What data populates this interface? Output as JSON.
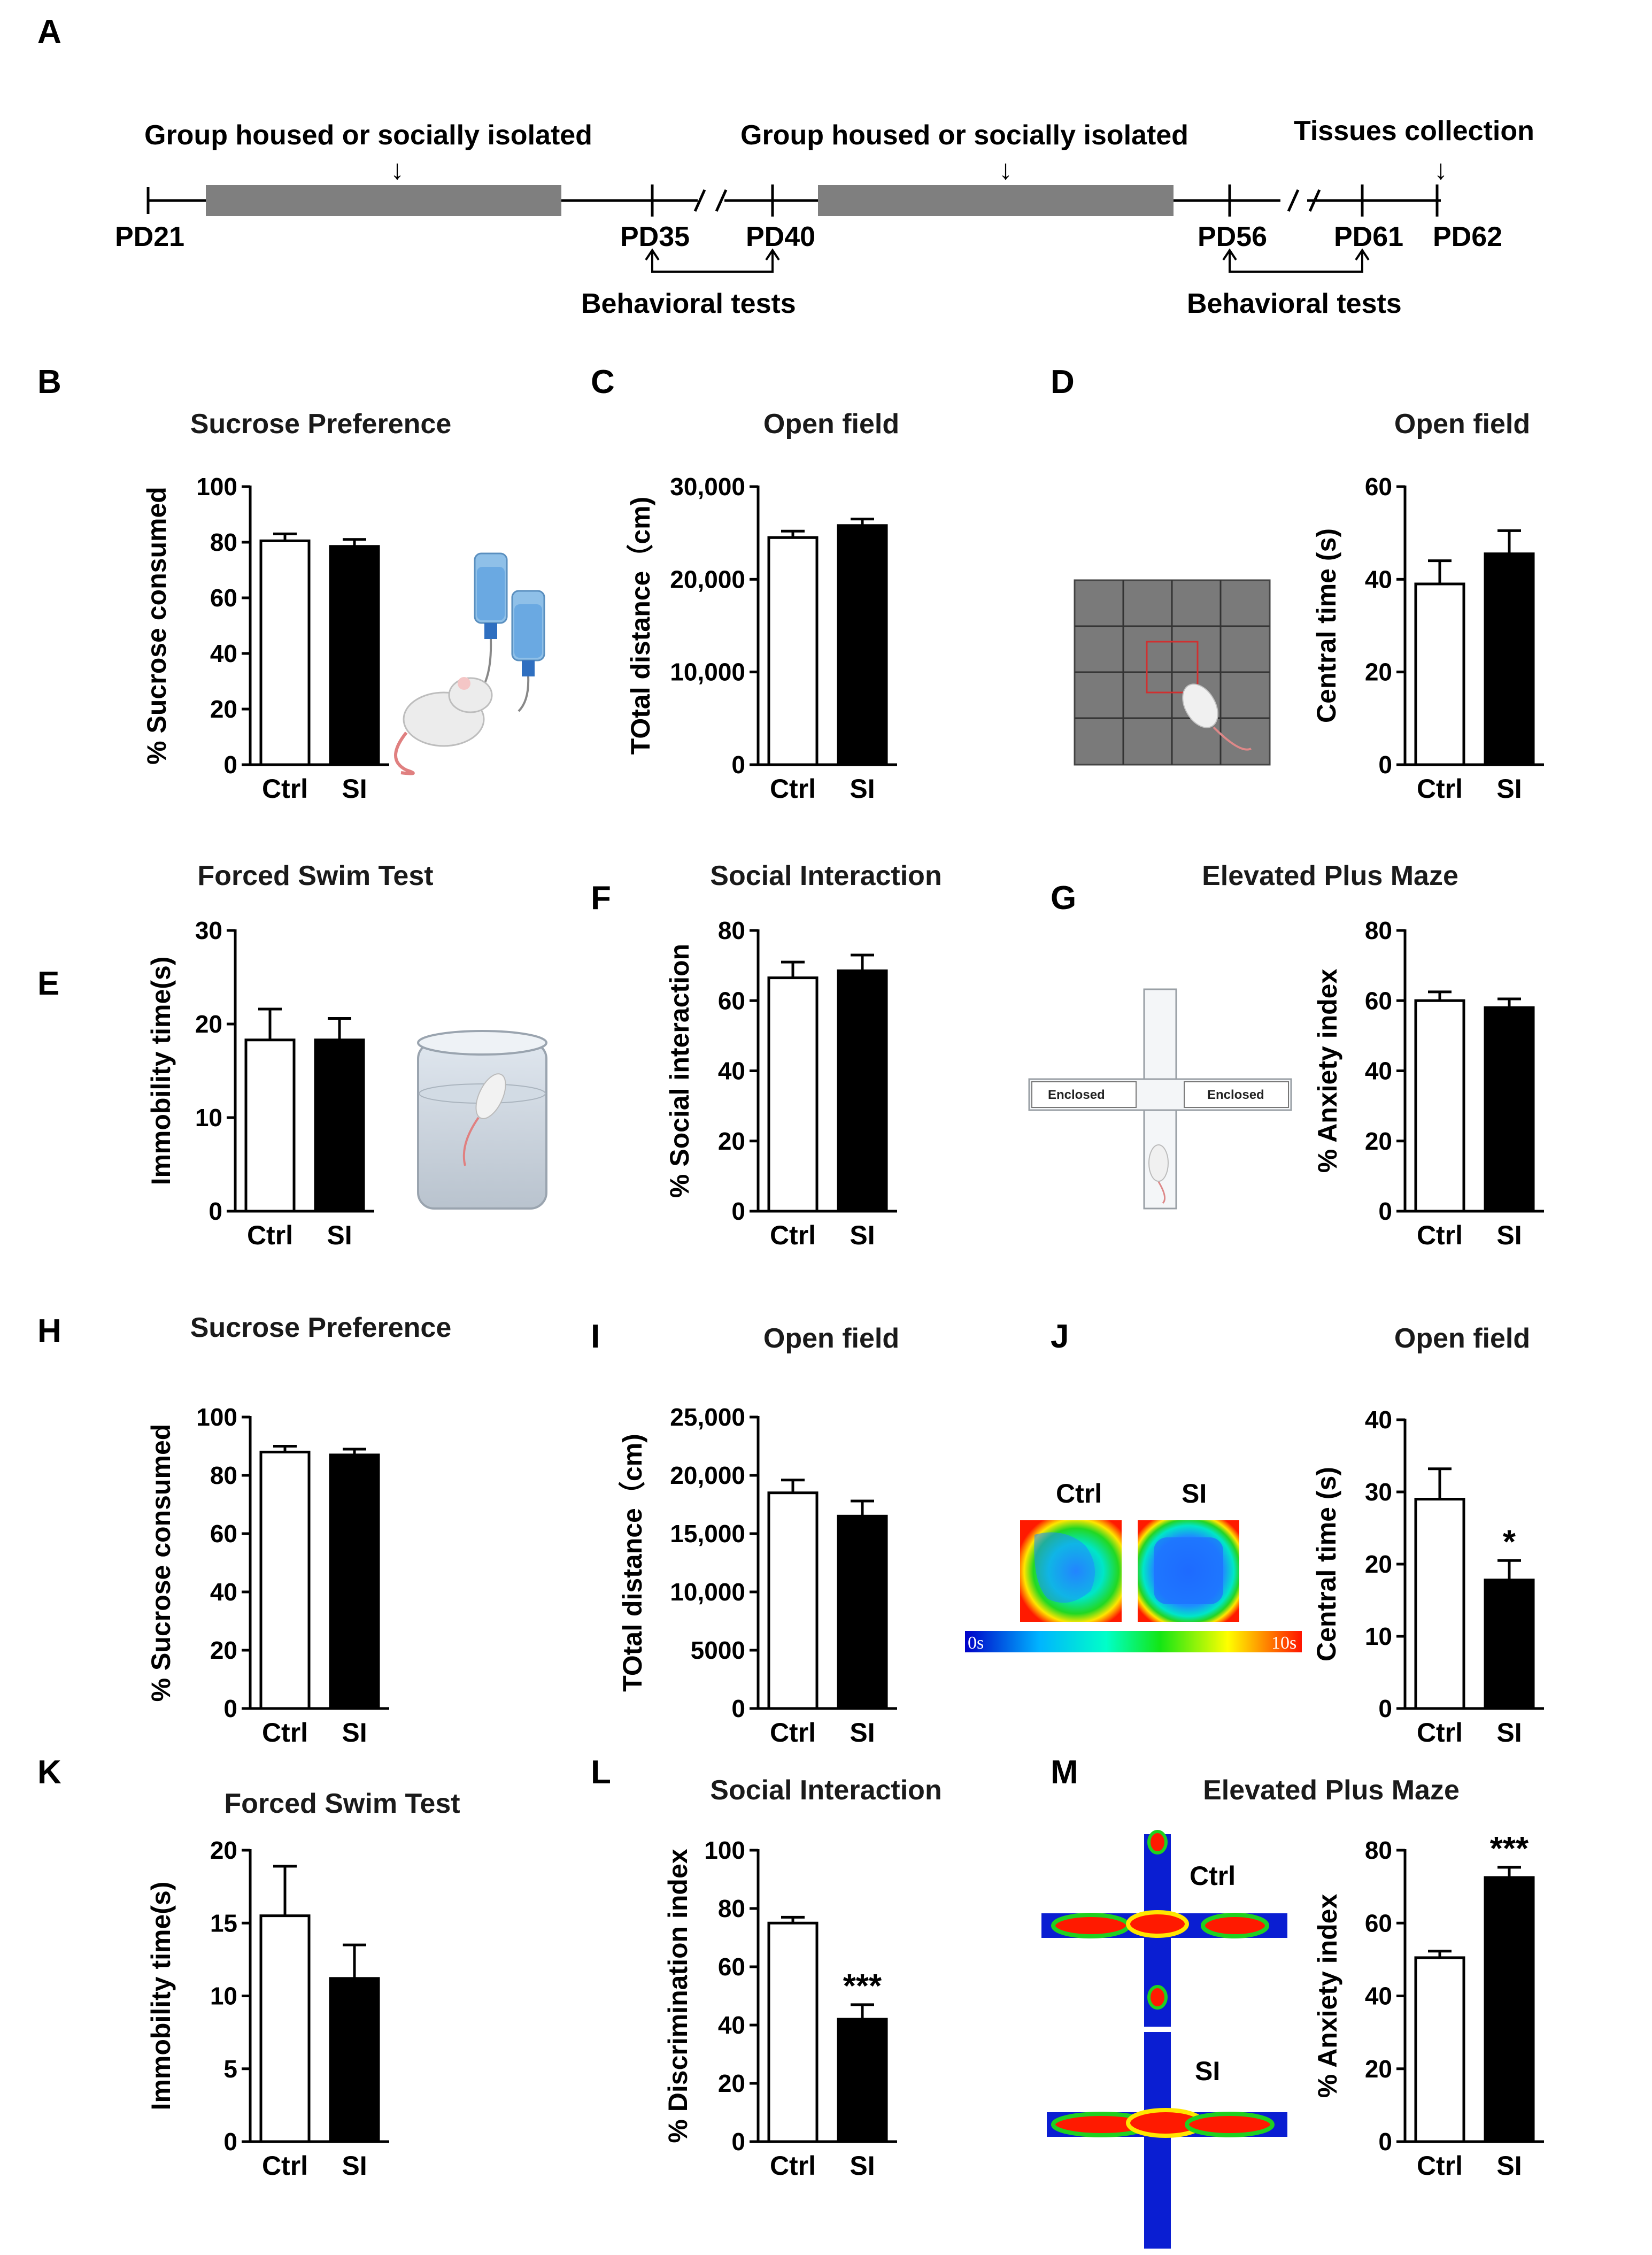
{
  "timeline": {
    "label": "A",
    "phase1_label": "Group housed or socially isolated",
    "phase2_label": "Group housed or socially isolated",
    "tissue_label": "Tissues collection",
    "pd21": "PD21",
    "pd35": "PD35",
    "pd40": "PD40",
    "pd56": "PD56",
    "pd61": "PD61",
    "pd62": "PD62",
    "behav1": "Behavioral tests",
    "behav2": "Behavioral tests"
  },
  "illustrations": {
    "enclosed_left": "Enclosed",
    "enclosed_right": "Enclosed",
    "heat_ctrl": "Ctrl",
    "heat_si": "SI",
    "colorbar_min": "0s",
    "colorbar_max": "10s",
    "maze_ctrl": "Ctrl",
    "maze_si": "SI"
  },
  "colors": {
    "ctrl_fill": "#ffffff",
    "si_fill": "#000000",
    "timeline_bar": "#7f7f7f"
  },
  "chart_data": [
    {
      "panel": "B",
      "type": "bar",
      "title": "Sucrose Preference",
      "ylabel": "% Sucrose consumed",
      "categories": [
        "Ctrl",
        "SI"
      ],
      "values": [
        80.5,
        78.5
      ],
      "errors": [
        2.5,
        2.5
      ],
      "ylim": [
        0,
        100
      ],
      "ticks": [
        0,
        20,
        40,
        60,
        80,
        100
      ],
      "tick_labels": [
        "0",
        "20",
        "40",
        "60",
        "80",
        "100"
      ],
      "significance": [
        "",
        ""
      ]
    },
    {
      "panel": "C",
      "type": "bar",
      "title": "Open field",
      "ylabel": "TOtal distance（cm)",
      "categories": [
        "Ctrl",
        "SI"
      ],
      "values": [
        24500,
        25800
      ],
      "errors": [
        700,
        700
      ],
      "ylim": [
        0,
        30000
      ],
      "ticks": [
        0,
        10000,
        20000,
        30000
      ],
      "tick_labels": [
        "0",
        "10,000",
        "20,000",
        "30,000"
      ],
      "significance": [
        "",
        ""
      ]
    },
    {
      "panel": "D",
      "type": "bar",
      "title": "Open field",
      "ylabel": "Central time (s)",
      "categories": [
        "Ctrl",
        "SI"
      ],
      "values": [
        39,
        45.5
      ],
      "errors": [
        5,
        5
      ],
      "ylim": [
        0,
        60
      ],
      "ticks": [
        0,
        20,
        40,
        60
      ],
      "tick_labels": [
        "0",
        "20",
        "40",
        "60"
      ],
      "significance": [
        "",
        ""
      ]
    },
    {
      "panel": "E",
      "type": "bar",
      "title": "Forced Swim Test",
      "ylabel": "Immobility time(s)",
      "categories": [
        "Ctrl",
        "SI"
      ],
      "values": [
        18.3,
        18.3
      ],
      "errors": [
        3.3,
        2.3
      ],
      "ylim": [
        0,
        30
      ],
      "ticks": [
        0,
        10,
        20,
        30
      ],
      "tick_labels": [
        "0",
        "10",
        "20",
        "30"
      ],
      "significance": [
        "",
        ""
      ]
    },
    {
      "panel": "F",
      "type": "bar",
      "title": "Social Interaction",
      "ylabel": "% Social interaction",
      "categories": [
        "Ctrl",
        "SI"
      ],
      "values": [
        66.5,
        68.5
      ],
      "errors": [
        4.5,
        4.5
      ],
      "ylim": [
        0,
        80
      ],
      "ticks": [
        0,
        20,
        40,
        60,
        80
      ],
      "tick_labels": [
        "0",
        "20",
        "40",
        "60",
        "80"
      ],
      "significance": [
        "",
        ""
      ]
    },
    {
      "panel": "G",
      "type": "bar",
      "title": "Elevated Plus Maze",
      "ylabel": "% Anxiety index",
      "categories": [
        "Ctrl",
        "SI"
      ],
      "values": [
        60,
        58
      ],
      "errors": [
        2.5,
        2.5
      ],
      "ylim": [
        0,
        80
      ],
      "ticks": [
        0,
        20,
        40,
        60,
        80
      ],
      "tick_labels": [
        "0",
        "20",
        "40",
        "60",
        "80"
      ],
      "significance": [
        "",
        ""
      ]
    },
    {
      "panel": "H",
      "type": "bar",
      "title": "Sucrose Preference",
      "ylabel": "% Sucrose consumed",
      "categories": [
        "Ctrl",
        "SI"
      ],
      "values": [
        88,
        87
      ],
      "errors": [
        2,
        2
      ],
      "ylim": [
        0,
        100
      ],
      "ticks": [
        0,
        20,
        40,
        60,
        80,
        100
      ],
      "tick_labels": [
        "0",
        "20",
        "40",
        "60",
        "80",
        "100"
      ],
      "significance": [
        "",
        ""
      ]
    },
    {
      "panel": "I",
      "type": "bar",
      "title": "Open field",
      "ylabel": "TOtal distance（cm)",
      "categories": [
        "Ctrl",
        "SI"
      ],
      "values": [
        18500,
        16500
      ],
      "errors": [
        1100,
        1300
      ],
      "ylim": [
        0,
        25000
      ],
      "ticks": [
        0,
        5000,
        10000,
        15000,
        20000,
        25000
      ],
      "tick_labels": [
        "0",
        "5000",
        "10,000",
        "15,000",
        "20,000",
        "25,000"
      ],
      "significance": [
        "",
        ""
      ]
    },
    {
      "panel": "J",
      "type": "bar",
      "title": "Open field",
      "ylabel": "Central time (s)",
      "categories": [
        "Ctrl",
        "SI"
      ],
      "values": [
        29,
        17.8
      ],
      "errors": [
        4.2,
        2.7
      ],
      "ylim": [
        0,
        40
      ],
      "ticks": [
        0,
        10,
        20,
        30,
        40
      ],
      "tick_labels": [
        "0",
        "10",
        "20",
        "30",
        "40"
      ],
      "significance": [
        "",
        "*"
      ]
    },
    {
      "panel": "K",
      "type": "bar",
      "title": "Forced Swim Test",
      "ylabel": "Immobility time(s)",
      "categories": [
        "Ctrl",
        "SI"
      ],
      "values": [
        15.5,
        11.2
      ],
      "errors": [
        3.4,
        2.3
      ],
      "ylim": [
        0,
        20
      ],
      "ticks": [
        0,
        5,
        10,
        15,
        20
      ],
      "tick_labels": [
        "0",
        "5",
        "10",
        "15",
        "20"
      ],
      "significance": [
        "",
        ""
      ]
    },
    {
      "panel": "L",
      "type": "bar",
      "title": "Social Interaction",
      "ylabel": "% Discrimination index",
      "categories": [
        "Ctrl",
        "SI"
      ],
      "values": [
        75,
        42
      ],
      "errors": [
        2,
        5
      ],
      "ylim": [
        0,
        100
      ],
      "ticks": [
        0,
        20,
        40,
        60,
        80,
        100
      ],
      "tick_labels": [
        "0",
        "20",
        "40",
        "60",
        "80",
        "100"
      ],
      "significance": [
        "",
        "***"
      ]
    },
    {
      "panel": "M",
      "type": "bar",
      "title": "Elevated Plus Maze",
      "ylabel": "% Anxiety index",
      "categories": [
        "Ctrl",
        "SI"
      ],
      "values": [
        50.5,
        72.5
      ],
      "errors": [
        1.8,
        2.8
      ],
      "ylim": [
        0,
        80
      ],
      "ticks": [
        0,
        20,
        40,
        60,
        80
      ],
      "tick_labels": [
        "0",
        "20",
        "40",
        "60",
        "80"
      ],
      "significance": [
        "",
        "***"
      ]
    }
  ]
}
